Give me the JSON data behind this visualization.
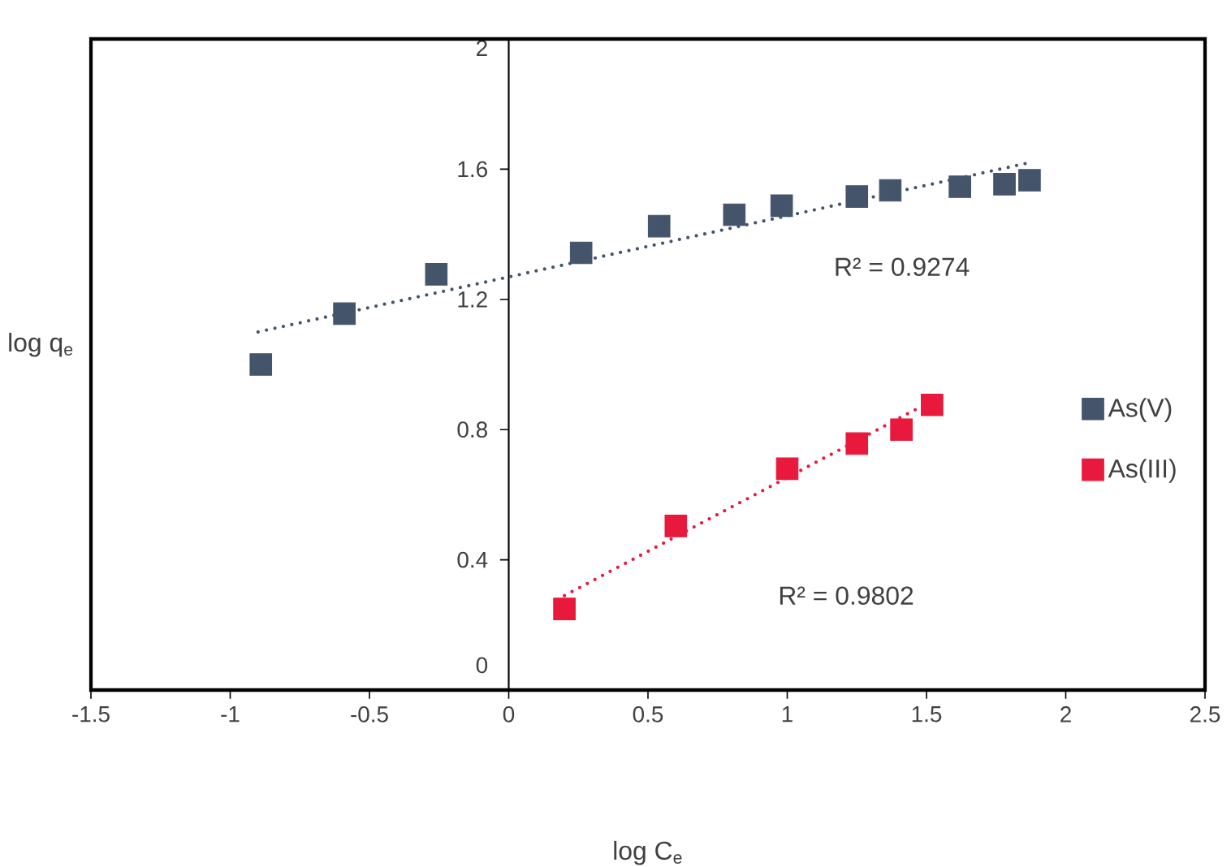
{
  "chart_data": {
    "type": "scatter",
    "xlabel": "log C$_{e}$",
    "ylabel": "log q$_{e}$",
    "xlim": [
      -1.5,
      2.5
    ],
    "xticks": [
      -1.5,
      -1,
      -0.5,
      0,
      0.5,
      1,
      1.5,
      2,
      2.5
    ],
    "ylim": [
      0,
      2
    ],
    "yticks": [
      0,
      0.4,
      0.8,
      1.2,
      1.6,
      2
    ],
    "grid": false,
    "legend": "right",
    "marker": "square",
    "series": [
      {
        "name": "As(V)",
        "color": "#44546a",
        "x": [
          -0.89,
          -0.59,
          -0.26,
          0.26,
          0.54,
          0.81,
          0.98,
          1.25,
          1.37,
          1.62,
          1.78,
          1.87
        ],
        "values": [
          1.0,
          1.156,
          1.277,
          1.343,
          1.425,
          1.46,
          1.488,
          1.516,
          1.535,
          1.546,
          1.554,
          1.566
        ]
      },
      {
        "name": "As(III)",
        "color": "#e8193c",
        "x": [
          0.2,
          0.6,
          1.0,
          1.25,
          1.41,
          1.52
        ],
        "values": [
          0.249,
          0.504,
          0.68,
          0.757,
          0.8,
          0.876
        ]
      },
      {
        "type": "line",
        "color": "#44546a",
        "marker": "none",
        "line_style": "dotted",
        "x": [
          -0.9,
          1.87
        ],
        "values": [
          1.1,
          1.62
        ]
      },
      {
        "type": "line",
        "color": "#e8193c",
        "marker": "none",
        "line_style": "dotted",
        "x": [
          0.2,
          1.53
        ],
        "values": [
          0.29,
          0.893
        ]
      }
    ],
    "annotations": [
      "R² = 0.9274",
      "R² = 0.9802"
    ]
  }
}
